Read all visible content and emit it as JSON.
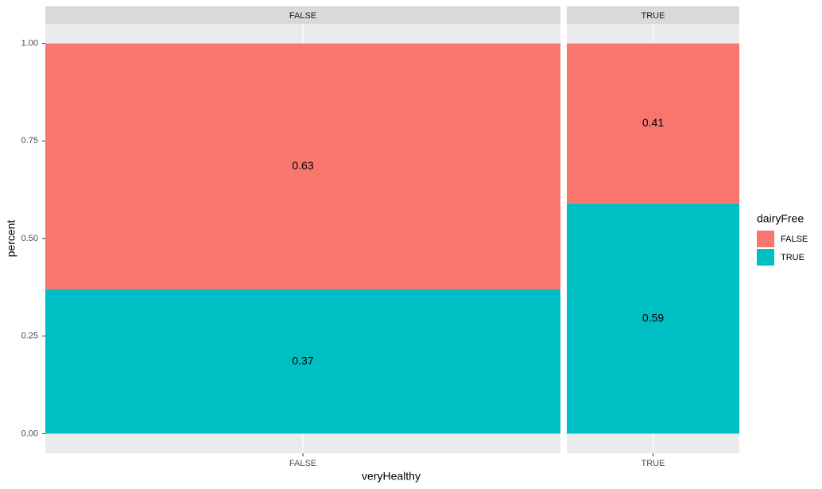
{
  "chart_data": {
    "type": "bar",
    "stacked": true,
    "facets": [
      "FALSE",
      "TRUE"
    ],
    "categories": [
      "FALSE",
      "TRUE"
    ],
    "x_label": "veryHealthy",
    "y_label": "percent",
    "legend_title": "dairyFree",
    "legend_position": "right",
    "series": [
      {
        "name": "FALSE",
        "color": "#F8766D",
        "values": [
          0.63,
          0.41
        ]
      },
      {
        "name": "TRUE",
        "color": "#00BFC4",
        "values": [
          0.37,
          0.59
        ]
      }
    ],
    "ylim": [
      -0.05,
      1.05
    ],
    "yticks": [
      {
        "value": 0,
        "label": "0.00"
      },
      {
        "value": 0.25,
        "label": "0.25"
      },
      {
        "value": 0.5,
        "label": "0.50"
      },
      {
        "value": 0.75,
        "label": "0.75"
      },
      {
        "value": 1,
        "label": "1.00"
      }
    ],
    "grid": true
  }
}
